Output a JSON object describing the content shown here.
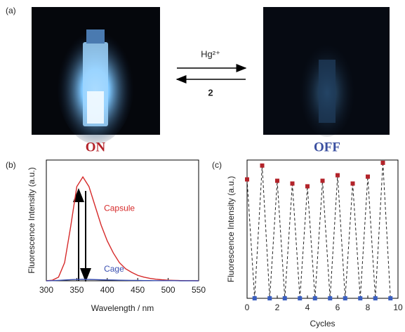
{
  "panel_labels": [
    "(a)",
    "(b)",
    "(c)"
  ],
  "photos": {
    "on_label": "ON",
    "off_label": "OFF",
    "forward": "Hg²⁺",
    "reverse": "2"
  },
  "chart_data": [
    {
      "type": "line",
      "x": [
        300,
        310,
        320,
        330,
        340,
        350,
        360,
        370,
        380,
        390,
        400,
        410,
        420,
        430,
        440,
        450,
        460,
        470,
        480,
        490,
        500,
        510,
        520,
        530,
        540,
        550
      ],
      "series": [
        {
          "name": "Capsule",
          "color": "#d62a2a",
          "values": [
            0,
            0.005,
            0.03,
            0.15,
            0.45,
            0.78,
            0.86,
            0.78,
            0.62,
            0.46,
            0.33,
            0.23,
            0.15,
            0.1,
            0.07,
            0.045,
            0.03,
            0.02,
            0.013,
            0.008,
            0.005,
            0.003,
            0.002,
            0.001,
            0.001,
            0
          ]
        },
        {
          "name": "Cage",
          "color": "#3a4fb0",
          "values": [
            0,
            0.001,
            0.003,
            0.006,
            0.009,
            0.011,
            0.012,
            0.011,
            0.01,
            0.008,
            0.007,
            0.006,
            0.005,
            0.004,
            0.003,
            0.003,
            0.002,
            0.002,
            0.001,
            0.001,
            0.001,
            0.001,
            0,
            0,
            0,
            0
          ]
        }
      ],
      "xlim": [
        300,
        550
      ],
      "ylim": [
        0,
        1
      ],
      "xticks": [
        300,
        350,
        400,
        450,
        500,
        550
      ],
      "xlabel": "Wavelength / nm",
      "ylabel": "Fluorescence Intensity (a.u.)"
    },
    {
      "type": "scatter",
      "series": [
        {
          "color": "#b3232a",
          "x": [
            0,
            1,
            2,
            3,
            4,
            5,
            6,
            7,
            8,
            9
          ],
          "values": [
            0.86,
            0.96,
            0.85,
            0.83,
            0.81,
            0.85,
            0.89,
            0.83,
            0.88,
            0.98
          ]
        },
        {
          "color": "#3a5fc0",
          "x": [
            0.5,
            1.5,
            2.5,
            3.5,
            4.5,
            5.5,
            6.5,
            7.5,
            8.5,
            9.5
          ],
          "values": [
            0,
            0,
            0,
            0,
            0,
            0,
            0,
            0,
            0,
            0
          ]
        }
      ],
      "xlim": [
        0,
        10
      ],
      "ylim": [
        0,
        1
      ],
      "xticks": [
        0,
        2,
        4,
        6,
        8,
        10
      ],
      "xlabel": "Cycles",
      "ylabel": "Fluorescence Intensity (a.u.)"
    }
  ]
}
